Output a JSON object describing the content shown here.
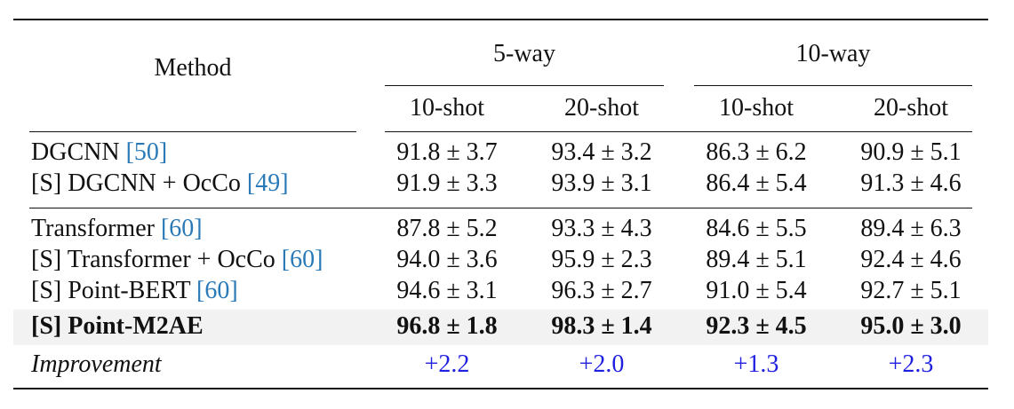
{
  "header": {
    "method": "Method",
    "groups": [
      "5-way",
      "10-way"
    ],
    "subcols": [
      "10-shot",
      "20-shot",
      "10-shot",
      "20-shot"
    ]
  },
  "rows": [
    {
      "method": "DGCNN",
      "cite": "50",
      "values": [
        "91.8 ± 3.7",
        "93.4 ± 3.2",
        "86.3 ± 6.2",
        "90.9 ± 5.1"
      ]
    },
    {
      "method": "[S] DGCNN + OcCo",
      "cite": "49",
      "values": [
        "91.9 ± 3.3",
        "93.9 ± 3.1",
        "86.4 ± 5.4",
        "91.3 ± 4.6"
      ]
    },
    {
      "method": "Transformer",
      "cite": "60",
      "values": [
        "87.8 ± 5.2",
        "93.3 ± 4.3",
        "84.6 ± 5.5",
        "89.4 ± 6.3"
      ]
    },
    {
      "method": "[S] Transformer + OcCo",
      "cite": "60",
      "values": [
        "94.0 ± 3.6",
        "95.9 ± 2.3",
        "89.4 ± 5.1",
        "92.4 ± 4.6"
      ]
    },
    {
      "method": "[S] Point-BERT",
      "cite": "60",
      "values": [
        "94.6 ± 3.1",
        "96.3 ± 2.7",
        "91.0 ± 5.4",
        "92.7 ± 5.1"
      ]
    },
    {
      "method": "[S] Point-M2AE",
      "cite": "",
      "values": [
        "96.8 ± 1.8",
        "98.3 ± 1.4",
        "92.3 ± 4.5",
        "95.0 ± 3.0"
      ]
    }
  ],
  "improvement": {
    "label": "Improvement",
    "values": [
      "+2.2",
      "+2.0",
      "+1.3",
      "+2.3"
    ]
  },
  "colors": {
    "citation": "#2a7ab8",
    "improvement": "#1f1fe0",
    "highlight_row": "#f2f2f2"
  }
}
